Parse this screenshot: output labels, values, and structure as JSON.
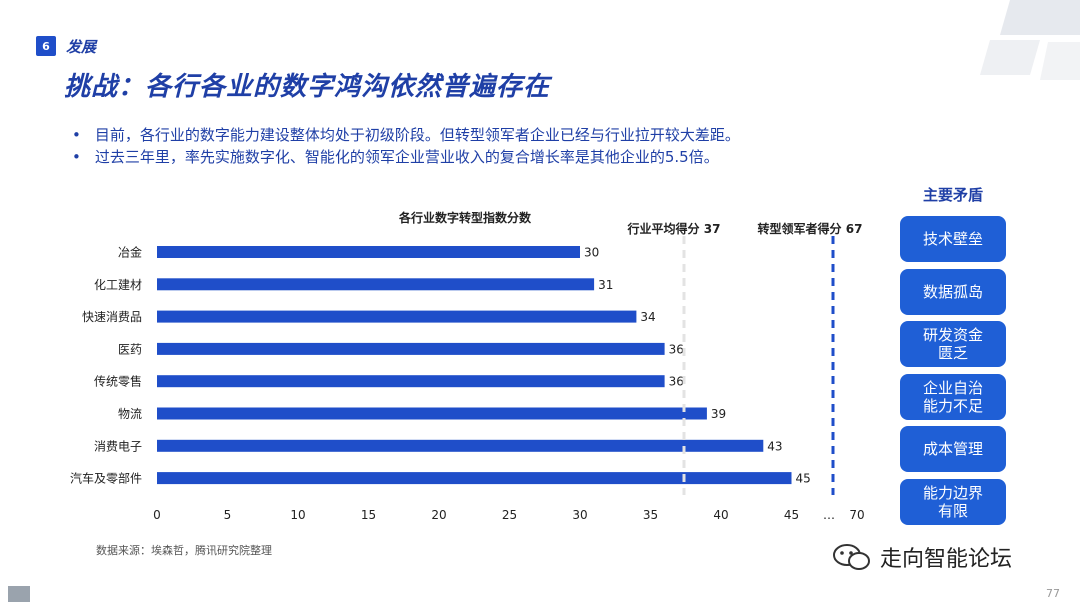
{
  "header": {
    "section_number": "6",
    "section_title": "发展",
    "title": "挑战：各行各业的数字鸿沟依然普遍存在"
  },
  "bullets": [
    "目前，各行业的数字能力建设整体均处于初级阶段。但转型领军者企业已经与行业拉开较大差距。",
    "过去三年里，率先实施数字化、智能化的领军企业营业收入的复合增长率是其他企业的5.5倍。"
  ],
  "chart_data": {
    "type": "bar",
    "orientation": "horizontal",
    "title": "各行业数字转型指数分数",
    "categories": [
      "冶金",
      "化工建材",
      "快速消费品",
      "医药",
      "传统零售",
      "物流",
      "消费电子",
      "汽车及零部件"
    ],
    "values": [
      30,
      31,
      34,
      36,
      36,
      39,
      43,
      45
    ],
    "x_ticks": [
      "0",
      "5",
      "10",
      "15",
      "20",
      "25",
      "30",
      "35",
      "40",
      "45",
      "…",
      "70"
    ],
    "reference_lines": [
      {
        "label": "行业平均得分 37",
        "value": 37,
        "color": "#e3e3e3"
      },
      {
        "label": "转型领军者得分 67",
        "value": 67,
        "color": "#1f4ec9"
      }
    ],
    "bar_color": "#1f4ec9",
    "grid": false
  },
  "side_panel": {
    "title": "主要矛盾",
    "items": [
      "技术壁垒",
      "数据孤岛",
      "研发资金\n匮乏",
      "企业自治\n能力不足",
      "成本管理",
      "能力边界\n有限"
    ]
  },
  "footer": {
    "source": "数据来源：埃森哲，腾讯研究院整理",
    "watermark": "走向智能论坛",
    "page_number": "77"
  }
}
